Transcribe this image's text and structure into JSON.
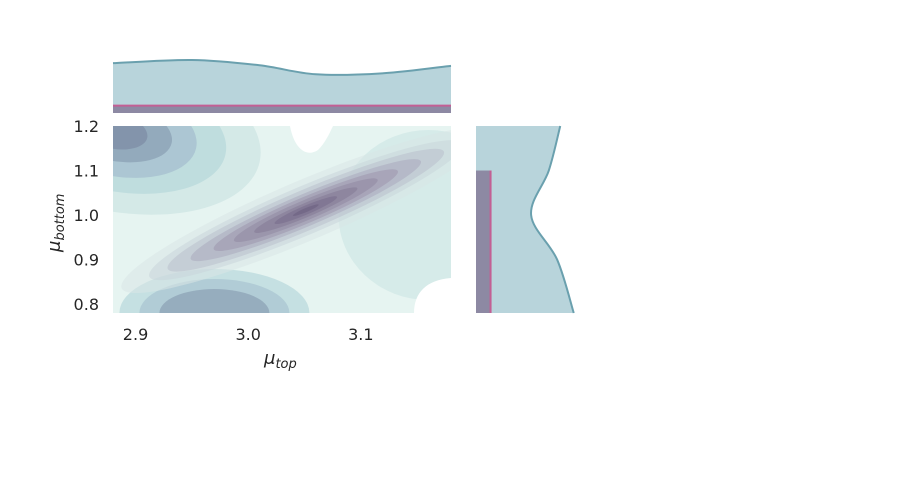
{
  "chart_data": {
    "type": "contour",
    "title": "",
    "xlabel": {
      "base": "μ",
      "sub": "top"
    },
    "ylabel": {
      "base": "μ",
      "sub": "bottom"
    },
    "xlim": [
      2.88,
      3.18
    ],
    "ylim": [
      0.78,
      1.2
    ],
    "x_ticks": [
      2.9,
      3.0,
      3.1
    ],
    "y_ticks": [
      0.8,
      0.9,
      1.0,
      1.1,
      1.2
    ],
    "x_tick_labels": [
      "2.9",
      "3.0",
      "3.1"
    ],
    "y_tick_labels": [
      "0.8",
      "0.9",
      "1.0",
      "1.1",
      "1.2"
    ],
    "series": [
      {
        "kind": "posterior_density_contour",
        "colormap": [
          "#e6f4f1",
          "#b9dadc",
          "#8da3b6",
          "#85768f"
        ],
        "peak": {
          "x": 3.06,
          "y": 1.02
        },
        "correlation_direction": "positive",
        "secondary_modes": [
          {
            "x": 2.88,
            "y": 1.19
          },
          {
            "x": 2.97,
            "y": 0.78
          }
        ]
      },
      {
        "kind": "prior_uniform_contour",
        "x_range": [
          2.88,
          3.18
        ],
        "y_range": [
          0.78,
          1.1
        ]
      }
    ],
    "marginal_top": {
      "posterior": [
        {
          "x": 2.88,
          "y": 0.94
        },
        {
          "x": 2.95,
          "y": 1.0
        },
        {
          "x": 3.01,
          "y": 0.9
        },
        {
          "x": 3.06,
          "y": 0.73
        },
        {
          "x": 3.12,
          "y": 0.75
        },
        {
          "x": 3.18,
          "y": 0.89
        }
      ],
      "prior_x_range": [
        2.88,
        3.18
      ],
      "prior_level": 0.14
    },
    "marginal_right": {
      "posterior": [
        {
          "y": 1.2,
          "d": 0.81
        },
        {
          "y": 1.1,
          "d": 0.7
        },
        {
          "y": 1.0,
          "d": 0.53
        },
        {
          "y": 0.9,
          "d": 0.78
        },
        {
          "y": 0.78,
          "d": 0.94
        }
      ],
      "prior_y_range": [
        0.78,
        1.1
      ],
      "prior_level": 0.14
    },
    "colors": {
      "posterior_fill": "#b8d4db",
      "posterior_edge": "#6aa0ae",
      "prior_fill": "#8d89a3",
      "prior_edge": "#c35f94"
    }
  }
}
